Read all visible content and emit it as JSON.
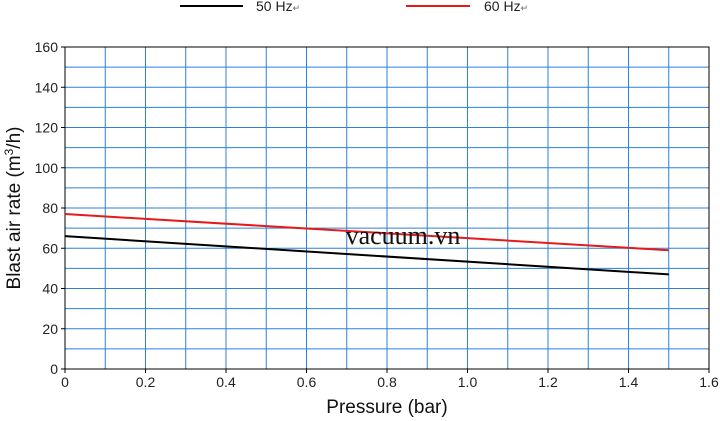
{
  "chart_data": {
    "type": "line",
    "title": "",
    "xlabel": "Pressure (bar)",
    "ylabel": "Blast air rate (m³/h)",
    "ylabel_parts": {
      "before": "Blast air rate (m",
      "sup": "3",
      "after": "/h)"
    },
    "xlim": [
      0,
      1.6
    ],
    "ylim": [
      0,
      160
    ],
    "x_ticks": [
      "0",
      "0.2",
      "0.4",
      "0.6",
      "0.8",
      "1.0",
      "1.2",
      "1.4",
      "1.6"
    ],
    "y_ticks": [
      "0",
      "20",
      "40",
      "60",
      "80",
      "100",
      "120",
      "140",
      "160"
    ],
    "grid": true,
    "legend_position": "top",
    "series": [
      {
        "name": "50 Hz",
        "color": "#000000",
        "x": [
          0,
          1.5
        ],
        "y": [
          66,
          47
        ]
      },
      {
        "name": "60 Hz",
        "color": "#e31b1b",
        "x": [
          0,
          1.5
        ],
        "y": [
          77,
          59
        ]
      }
    ],
    "annotations": [
      {
        "text": "vacuum.vn",
        "x": 0.8,
        "y": 62
      }
    ]
  },
  "legend_mark": "↵"
}
